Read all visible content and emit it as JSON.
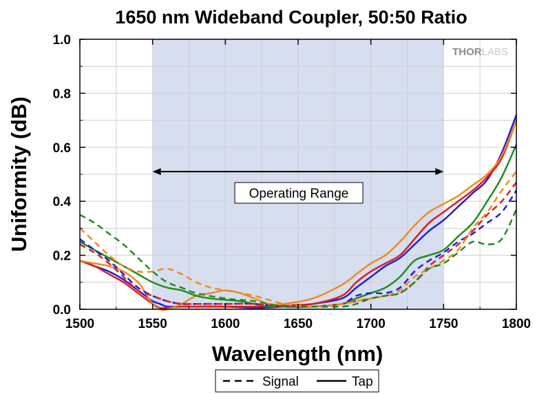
{
  "chart_data": {
    "type": "line",
    "title": "1650 nm Wideband Coupler, 50:50 Ratio",
    "xlabel": "Wavelength (nm)",
    "ylabel": "Uniformity (dB)",
    "xlim": [
      1500,
      1800
    ],
    "ylim": [
      0,
      1.0
    ],
    "x_ticks": [
      "1500",
      "1550",
      "1600",
      "1650",
      "1700",
      "1750",
      "1800"
    ],
    "y_ticks": [
      "0.0",
      "0.2",
      "0.4",
      "0.6",
      "0.8",
      "1.0"
    ],
    "grid": true,
    "legend_position": "bottom",
    "legend": [
      {
        "label": "Signal",
        "style": "dashed"
      },
      {
        "label": "Tap",
        "style": "solid"
      }
    ],
    "shaded_region": {
      "x_start": 1550,
      "x_end": 1750,
      "color": "#d6def0"
    },
    "annotation": {
      "text": "Operating Range",
      "x_start": 1550,
      "x_end": 1750,
      "y": 0.51
    },
    "watermark": {
      "text_dark": "THOR",
      "text_light": "LABS"
    },
    "series": [
      {
        "role": "Tap",
        "color": "#1f1fd6",
        "dash": "solid",
        "x": [
          1500,
          1510,
          1520,
          1530,
          1540,
          1545,
          1550,
          1555,
          1560,
          1570,
          1580,
          1600,
          1620,
          1640,
          1660,
          1680,
          1690,
          1700,
          1710,
          1720,
          1730,
          1740,
          1750,
          1760,
          1770,
          1780,
          1790,
          1800
        ],
        "y": [
          0.18,
          0.16,
          0.14,
          0.11,
          0.07,
          0.05,
          0.03,
          0.02,
          0.01,
          0.01,
          0.01,
          0.01,
          0.005,
          0.01,
          0.02,
          0.04,
          0.08,
          0.12,
          0.16,
          0.19,
          0.24,
          0.29,
          0.33,
          0.38,
          0.43,
          0.48,
          0.58,
          0.72
        ]
      },
      {
        "role": "Tap",
        "color": "#e01c1c",
        "dash": "solid",
        "x": [
          1500,
          1510,
          1520,
          1530,
          1540,
          1550,
          1555,
          1560,
          1570,
          1580,
          1600,
          1620,
          1640,
          1660,
          1680,
          1690,
          1700,
          1710,
          1720,
          1730,
          1740,
          1750,
          1760,
          1770,
          1780,
          1790,
          1800
        ],
        "y": [
          0.18,
          0.16,
          0.13,
          0.1,
          0.06,
          0.02,
          0.005,
          0.005,
          0.01,
          0.01,
          0.01,
          0.01,
          0.015,
          0.02,
          0.05,
          0.1,
          0.14,
          0.17,
          0.2,
          0.26,
          0.32,
          0.36,
          0.4,
          0.44,
          0.49,
          0.56,
          0.7
        ]
      },
      {
        "role": "Tap",
        "color": "#f08a1c",
        "dash": "solid",
        "x": [
          1500,
          1510,
          1520,
          1530,
          1540,
          1545,
          1550,
          1555,
          1560,
          1570,
          1580,
          1590,
          1600,
          1610,
          1620,
          1630,
          1640,
          1660,
          1680,
          1690,
          1700,
          1710,
          1720,
          1730,
          1740,
          1750,
          1760,
          1770,
          1780,
          1790,
          1800
        ],
        "y": [
          0.18,
          0.17,
          0.16,
          0.14,
          0.1,
          0.06,
          0.02,
          0.0,
          0.0,
          0.02,
          0.05,
          0.06,
          0.07,
          0.06,
          0.04,
          0.02,
          0.02,
          0.04,
          0.09,
          0.13,
          0.17,
          0.2,
          0.25,
          0.31,
          0.36,
          0.39,
          0.42,
          0.46,
          0.5,
          0.57,
          0.7
        ]
      },
      {
        "role": "Tap",
        "color": "#1e8c1e",
        "dash": "solid",
        "x": [
          1500,
          1510,
          1520,
          1530,
          1540,
          1550,
          1560,
          1570,
          1580,
          1590,
          1600,
          1610,
          1620,
          1630,
          1640,
          1660,
          1680,
          1690,
          1700,
          1710,
          1720,
          1730,
          1740,
          1750,
          1760,
          1770,
          1780,
          1790,
          1800
        ],
        "y": [
          0.25,
          0.22,
          0.19,
          0.16,
          0.13,
          0.1,
          0.08,
          0.07,
          0.05,
          0.04,
          0.035,
          0.03,
          0.02,
          0.01,
          0.01,
          0.01,
          0.02,
          0.04,
          0.06,
          0.08,
          0.12,
          0.18,
          0.2,
          0.22,
          0.27,
          0.32,
          0.4,
          0.49,
          0.61
        ]
      },
      {
        "role": "Signal",
        "color": "#1f1fd6",
        "dash": "dashed",
        "x": [
          1500,
          1510,
          1520,
          1530,
          1540,
          1550,
          1560,
          1570,
          1580,
          1600,
          1620,
          1640,
          1660,
          1680,
          1690,
          1700,
          1710,
          1720,
          1730,
          1740,
          1750,
          1760,
          1770,
          1780,
          1790,
          1800
        ],
        "y": [
          0.26,
          0.22,
          0.18,
          0.13,
          0.08,
          0.05,
          0.03,
          0.02,
          0.02,
          0.02,
          0.02,
          0.01,
          0.01,
          0.02,
          0.05,
          0.06,
          0.06,
          0.08,
          0.14,
          0.18,
          0.21,
          0.25,
          0.28,
          0.32,
          0.36,
          0.44
        ]
      },
      {
        "role": "Signal",
        "color": "#e01c1c",
        "dash": "dashed",
        "x": [
          1500,
          1510,
          1520,
          1530,
          1540,
          1550,
          1560,
          1570,
          1580,
          1600,
          1620,
          1640,
          1660,
          1680,
          1690,
          1700,
          1710,
          1720,
          1730,
          1740,
          1750,
          1760,
          1770,
          1780,
          1790,
          1800
        ],
        "y": [
          0.24,
          0.21,
          0.17,
          0.12,
          0.07,
          0.05,
          0.03,
          0.02,
          0.02,
          0.02,
          0.02,
          0.01,
          0.01,
          0.02,
          0.03,
          0.04,
          0.05,
          0.06,
          0.1,
          0.16,
          0.2,
          0.24,
          0.29,
          0.35,
          0.4,
          0.47
        ]
      },
      {
        "role": "Signal",
        "color": "#f08a1c",
        "dash": "dashed",
        "x": [
          1500,
          1510,
          1520,
          1530,
          1540,
          1550,
          1560,
          1570,
          1580,
          1590,
          1600,
          1620,
          1640,
          1660,
          1680,
          1690,
          1700,
          1710,
          1720,
          1730,
          1740,
          1750,
          1760,
          1770,
          1780,
          1790,
          1800
        ],
        "y": [
          0.3,
          0.25,
          0.2,
          0.16,
          0.14,
          0.14,
          0.15,
          0.13,
          0.1,
          0.08,
          0.07,
          0.05,
          0.02,
          0.01,
          0.02,
          0.03,
          0.04,
          0.05,
          0.07,
          0.12,
          0.15,
          0.18,
          0.22,
          0.3,
          0.36,
          0.44,
          0.51
        ]
      },
      {
        "role": "Signal",
        "color": "#1e8c1e",
        "dash": "dashed",
        "x": [
          1500,
          1510,
          1520,
          1530,
          1540,
          1550,
          1560,
          1570,
          1580,
          1600,
          1620,
          1640,
          1660,
          1680,
          1690,
          1700,
          1710,
          1720,
          1730,
          1740,
          1750,
          1760,
          1770,
          1780,
          1790,
          1800
        ],
        "y": [
          0.35,
          0.32,
          0.28,
          0.24,
          0.19,
          0.14,
          0.1,
          0.08,
          0.06,
          0.04,
          0.03,
          0.01,
          0.01,
          0.01,
          0.02,
          0.04,
          0.05,
          0.06,
          0.1,
          0.15,
          0.17,
          0.21,
          0.25,
          0.24,
          0.26,
          0.37
        ]
      }
    ]
  }
}
